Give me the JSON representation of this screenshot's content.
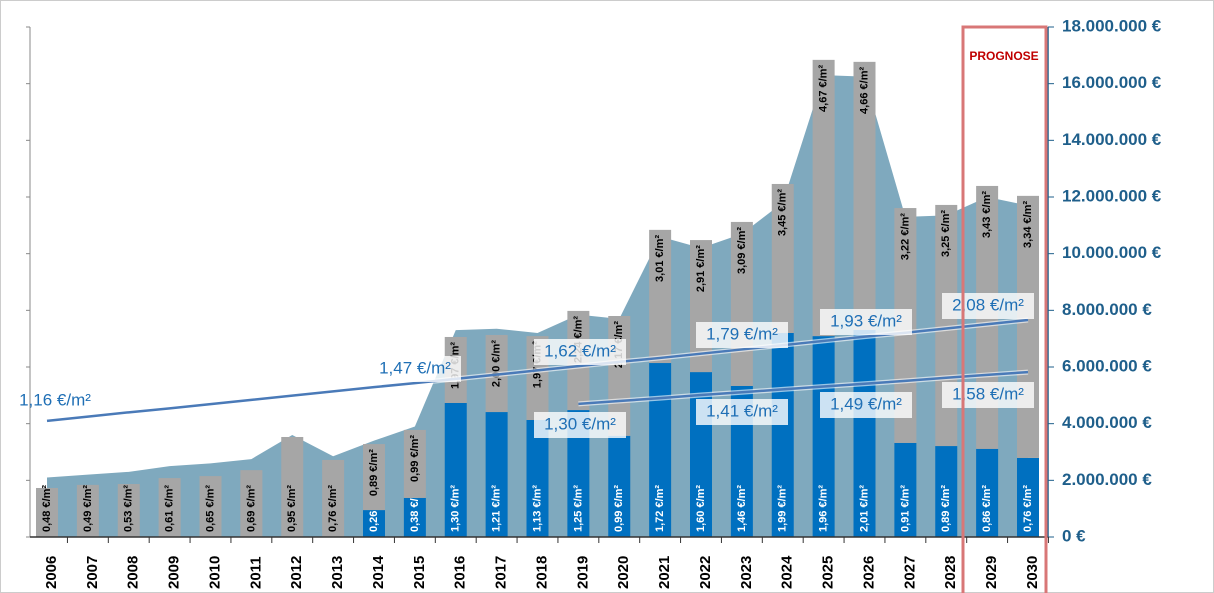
{
  "chart_data": {
    "type": "bar",
    "categories": [
      "2006",
      "2007",
      "2008",
      "2009",
      "2010",
      "2011",
      "2012",
      "2013",
      "2014",
      "2015",
      "2016",
      "2017",
      "2018",
      "2019",
      "2020",
      "2021",
      "2022",
      "2023",
      "2024",
      "2025",
      "2026",
      "2027",
      "2028",
      "2029",
      "2030"
    ],
    "area": {
      "color": "#7fa9be",
      "values": [
        2100000,
        2200000,
        2300000,
        2500000,
        2600000,
        2750000,
        3600000,
        2850000,
        3400000,
        3900000,
        7300000,
        7350000,
        7200000,
        7850000,
        7700000,
        10600000,
        10200000,
        10700000,
        11800000,
        16300000,
        16250000,
        11300000,
        11350000,
        12000000,
        11700000
      ]
    },
    "series": [
      {
        "color": "#0070c0",
        "values": [
          null,
          null,
          null,
          null,
          null,
          null,
          null,
          null,
          950000,
          1380000,
          4730000,
          4410000,
          4130000,
          4480000,
          3570000,
          6140000,
          5820000,
          5330000,
          7200000,
          7090000,
          7310000,
          3320000,
          3210000,
          3110000,
          2790000
        ],
        "value_labels": [
          null,
          null,
          null,
          null,
          null,
          null,
          null,
          null,
          "0,26 €/m²",
          "0,38 €/m²",
          "1,30 €/m²",
          "1,21 €/m²",
          "1,13 €/m²",
          "1,25 €/m²",
          "0,99 €/m²",
          "1,72 €/m²",
          "1,60 €/m²",
          "1,46 €/m²",
          "1,99 €/m²",
          "1,96 €/m²",
          "2,01 €/m²",
          "0,91 €/m²",
          "0,89 €/m²",
          "0,86 €/m²",
          "0,76 €/m²"
        ]
      },
      {
        "color": "#a6a6a6",
        "values": [
          1730000,
          1840000,
          1870000,
          2080000,
          2150000,
          2360000,
          3530000,
          2720000,
          2330000,
          2400000,
          2330000,
          2720000,
          2960000,
          3500000,
          4230000,
          4700000,
          4660000,
          5790000,
          5260000,
          9750000,
          9460000,
          8290000,
          8510000,
          9280000,
          9250000
        ],
        "value_labels": [
          "0,48 €/m²",
          "0,49 €/m²",
          "0,53 €/m²",
          "0,61 €/m²",
          "0,65 €/m²",
          "0,69 €/m²",
          "0,95 €/m²",
          "0,76 €/m²",
          "0,89 €/m²",
          "0,99 €/m²",
          "1,97 €/m²",
          "2,00 €/m²",
          "1,97 €/m²",
          "2,24 €/m²",
          "2,17 €/m²",
          "3,01 €/m²",
          "2,91 €/m²",
          "3,09 €/m²",
          "3,45 €/m²",
          "4,67 €/m²",
          "4,66 €/m²",
          "3,22 €/m²",
          "3,25 €/m²",
          "3,43 €/m²",
          "3,34 €/m²"
        ]
      }
    ],
    "trend_lines": [
      {
        "color": "#4a7ab8",
        "values": [
          4100000,
          4250000,
          4400000,
          4540000,
          4690000,
          4840000,
          4990000,
          5140000,
          5290000,
          5430000,
          5580000,
          5730000,
          5880000,
          6030000,
          6180000,
          6320000,
          6470000,
          6620000,
          6770000,
          6920000,
          7070000,
          7210000,
          7360000,
          7510000,
          7660000
        ],
        "labels": [
          "1,16 €/m²",
          "1,47 €/m²",
          "1,62 €/m²",
          "1,79 €/m²",
          "1,93 €/m²",
          "2,08 €/m²"
        ]
      },
      {
        "color": "#4a7ab8",
        "values": [
          null,
          null,
          null,
          null,
          null,
          null,
          null,
          null,
          null,
          null,
          null,
          null,
          null,
          4700000,
          4800000,
          4900000,
          5010000,
          5110000,
          5210000,
          5310000,
          5410000,
          5510000,
          5620000,
          5720000,
          5820000
        ],
        "labels": [
          "1,30 €/m²",
          "1,41 €/m²",
          "1,49 €/m²",
          "1,58 €/m²"
        ]
      }
    ],
    "forecast_label": "PROGNOSE",
    "ylim": [
      0,
      18000000
    ],
    "yticks": [
      {
        "value": 0,
        "label": "0 €"
      },
      {
        "value": 2000000,
        "label": "2.000.000 €"
      },
      {
        "value": 4000000,
        "label": "4.000.000 €"
      },
      {
        "value": 6000000,
        "label": "6.000.000 €"
      },
      {
        "value": 8000000,
        "label": "8.000.000 €"
      },
      {
        "value": 10000000,
        "label": "10.000.000 €"
      },
      {
        "value": 12000000,
        "label": "12.000.000 €"
      },
      {
        "value": 14000000,
        "label": "14.000.000 €"
      },
      {
        "value": 16000000,
        "label": "16.000.000 €"
      },
      {
        "value": 18000000,
        "label": "18.000.000 €"
      }
    ]
  }
}
